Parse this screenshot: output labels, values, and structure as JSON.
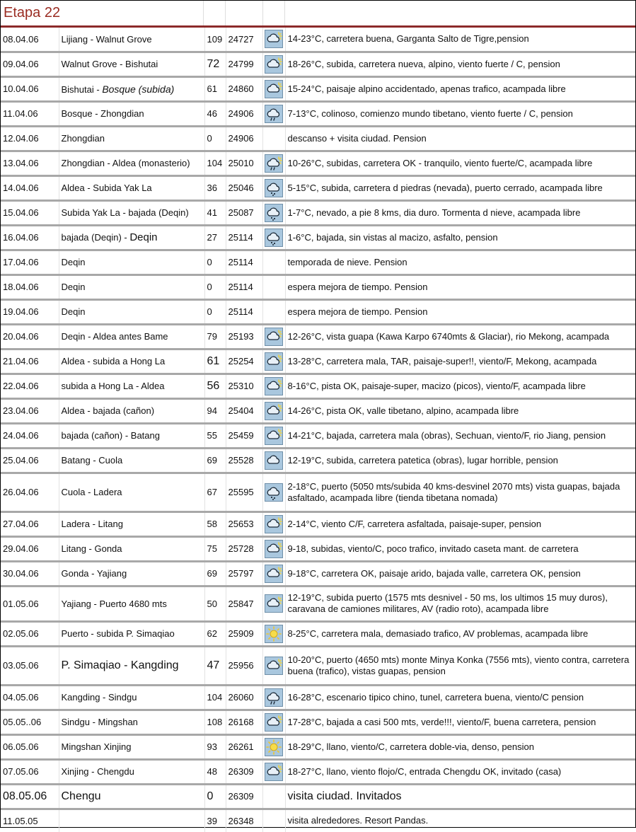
{
  "title": "Etapa 22",
  "colors": {
    "title": "#9a2c22",
    "rule": "#8c2a2a",
    "icon_bg": "#a9c7de"
  },
  "rows": [
    {
      "date": "08.04.06",
      "route": "Lijiang - Walnut Grove",
      "km": "109",
      "total": "24727",
      "icon": "cloud-sun-icon",
      "notes": "14-23°C, carretera buena, Garganta Salto de Tigre,pension"
    },
    {
      "date": "09.04.06",
      "route": "Walnut Grove - Bishutai",
      "km": "72",
      "total": "24799",
      "icon": "cloud-sun-icon",
      "notes": "18-26°C, subida, carretera nueva, alpino, viento fuerte / C, pension"
    },
    {
      "date": "10.04.06",
      "route": "Bishutai - ",
      "route_em": "Bosque (subida)",
      "km": "61",
      "total": "24860",
      "icon": "cloud-sun-icon",
      "notes": "15-24°C, paisaje alpino accidentado, apenas trafico, acampada libre"
    },
    {
      "date": "11.04.06",
      "route": "Bosque - Zhongdian",
      "km": "46",
      "total": "24906",
      "icon": "cloud-rain-icon",
      "notes": "7-13°C, colinoso, comienzo mundo tibetano, viento fuerte / C, pension"
    },
    {
      "date": "12.04.06",
      "route": "Zhongdian",
      "km": "0",
      "total": "24906",
      "icon": "",
      "notes": "descanso + visita ciudad. Pension"
    },
    {
      "date": "13.04.06",
      "route": "Zhongdian - Aldea (monasterio)",
      "km": "104",
      "total": "25010",
      "icon": "cloud-sun-rain-icon",
      "notes": "10-26°C, subidas, carretera OK - tranquilo, viento fuerte/C, acampada libre"
    },
    {
      "date": "14.04.06",
      "route": "Aldea - Subida Yak La",
      "km": "36",
      "total": "25046",
      "icon": "cloud-snow-icon",
      "notes": "5-15°C, subida, carretera d piedras (nevada), puerto cerrado, acampada libre"
    },
    {
      "date": "15.04.06",
      "route": "Subida Yak La - bajada (Deqin)",
      "km": "41",
      "total": "25087",
      "icon": "cloud-snow-icon",
      "notes": "1-7°C, nevado, a pie 8 kms, dia duro. Tormenta d nieve, acampada libre"
    },
    {
      "date": "16.04.06",
      "route": "bajada (Deqin) - ",
      "route_big": "Deqin",
      "km": "27",
      "total": "25114",
      "icon": "cloud-snow-icon",
      "notes": "1-6°C, bajada, sin vistas al macizo, asfalto, pension"
    },
    {
      "date": "17.04.06",
      "route": "Deqin",
      "km": "0",
      "total": "25114",
      "icon": "",
      "notes": "temporada de nieve. Pension"
    },
    {
      "date": "18.04.06",
      "route": "Deqin",
      "km": "0",
      "total": "25114",
      "icon": "",
      "notes": "espera mejora de tiempo. Pension"
    },
    {
      "date": "19.04.06",
      "route": "Deqin",
      "km": "0",
      "total": "25114",
      "icon": "",
      "notes": "espera mejora de tiempo. Pension"
    },
    {
      "date": "20.04.06",
      "route": "Deqin - Aldea antes Bame",
      "km": "79",
      "total": "25193",
      "icon": "cloud-sun-icon",
      "notes": "12-26°C, vista guapa (Kawa Karpo 6740mts & Glaciar), rio Mekong, acampada"
    },
    {
      "date": "21.04.06",
      "route": "Aldea - subida a Hong La",
      "km": "61",
      "total": "25254",
      "icon": "cloud-sun-icon",
      "notes": "13-28°C, carretera mala, TAR, paisaje-super!!, viento/F, Mekong, acampada"
    },
    {
      "date": "22.04.06",
      "route": "subida a Hong La - Aldea",
      "km": "56",
      "total": "25310",
      "icon": "cloud-sun-icon",
      "notes": "8-16°C, pista OK, paisaje-super, macizo (picos), viento/F, acampada libre"
    },
    {
      "date": "23.04.06",
      "route": "Aldea - bajada (cañon)",
      "km": "94",
      "total": "25404",
      "icon": "cloud-sun-icon",
      "notes": "14-26°C, pista OK, valle tibetano, alpino, acampada libre"
    },
    {
      "date": "24.04.06",
      "route": "bajada (cañon) - Batang",
      "km": "55",
      "total": "25459",
      "icon": "cloud-sun-icon",
      "notes": "14-21°C, bajada, carretera mala (obras), Sechuan, viento/F, rio Jiang, pension"
    },
    {
      "date": "25.04.06",
      "route": "Batang - Cuola",
      "km": "69",
      "total": "25528",
      "icon": "cloud-icon",
      "notes": "12-19°C, subida, carretera patetica (obras), lugar horrible, pension"
    },
    {
      "date": "26.04.06",
      "route": "Cuola - Ladera",
      "km": "67",
      "total": "25595",
      "icon": "cloud-snow-icon",
      "notes": "2-18°C, puerto (5050 mts/subida 40 kms-desvinel 2070 mts) vista guapas, bajada asfaltado, acampada libre (tienda tibetana nomada)"
    },
    {
      "date": "27.04.06",
      "route": "Ladera - Litang",
      "km": "58",
      "total": "25653",
      "icon": "cloud-sun-icon",
      "notes": "2-14°C, viento C/F, carretera asfaltada, paisaje-super, pension"
    },
    {
      "date": "29.04.06",
      "route": "Litang - Gonda",
      "km": "75",
      "total": "25728",
      "icon": "cloud-sun-icon",
      "notes": "9-18, subidas, viento/C, poco trafico, invitado caseta mant. de carretera"
    },
    {
      "date": "30.04.06",
      "route": "Gonda - Yajiang",
      "km": "69",
      "total": "25797",
      "icon": "cloud-sun-icon",
      "notes": "9-18°C, carretera OK, paisaje arido, bajada valle, carretera OK, pension"
    },
    {
      "date": "01.05.06",
      "route": "Yajiang - Puerto 4680 mts",
      "km": "50",
      "total": "25847",
      "icon": "cloud-sun-icon",
      "notes": "12-19°C, subida puerto (1575 mts desnivel - 50 ms, los ultimos 15 muy duros), caravana de camiones militares, AV (radio roto), acampada libre"
    },
    {
      "date": "02.05.06",
      "route": "Puerto - subida P. Simaqiao",
      "km": "62",
      "total": "25909",
      "icon": "sun-icon",
      "notes": "8-25°C,  carretera mala, demasiado trafico, AV problemas, acampada libre"
    },
    {
      "date": "03.05.06",
      "route": "P. Simaqiao - Kangding",
      "km": "47",
      "total": "25956",
      "icon": "cloud-sun-icon",
      "notes": "10-20°C, puerto (4650 mts) monte Minya Konka (7556 mts), viento contra, carretera buena (trafico), vistas guapas, pension"
    },
    {
      "date": "04.05.06",
      "route": "Kangding - Sindgu",
      "km": "104",
      "total": "26060",
      "icon": "cloud-rain-icon",
      "notes": "16-28°C, escenario tipico chino, tunel, carretera buena, viento/C pension"
    },
    {
      "date": "05.05..06",
      "route": "Sindgu - Mingshan",
      "km": "108",
      "total": "26168",
      "icon": "cloud-sun-icon",
      "notes": "17-28°C, bajada a casi 500 mts, verde!!!, viento/F, buena carretera, pension"
    },
    {
      "date": "06.05.06",
      "route": "Mingshan Xinjing",
      "km": "93",
      "total": "26261",
      "icon": "sun-icon",
      "notes": "18-29°C, llano, viento/C, carretera doble-via, denso, pension"
    },
    {
      "date": "07.05.06",
      "route": "Xinjing - Chengdu",
      "km": "48",
      "total": "26309",
      "icon": "cloud-sun-icon",
      "notes": "18-27°C, llano, viento flojo/C, entrada Chengdu OK, invitado (casa)"
    },
    {
      "date": "08.05.06",
      "route": "Chengu",
      "km": "0",
      "total": "26309",
      "icon": "",
      "notes": "visita ciudad. Invitados"
    },
    {
      "date": "11.05.05",
      "route": "",
      "km": "39",
      "total": "26348",
      "icon": "",
      "notes": "visita alrededores. Resort Pandas."
    }
  ]
}
